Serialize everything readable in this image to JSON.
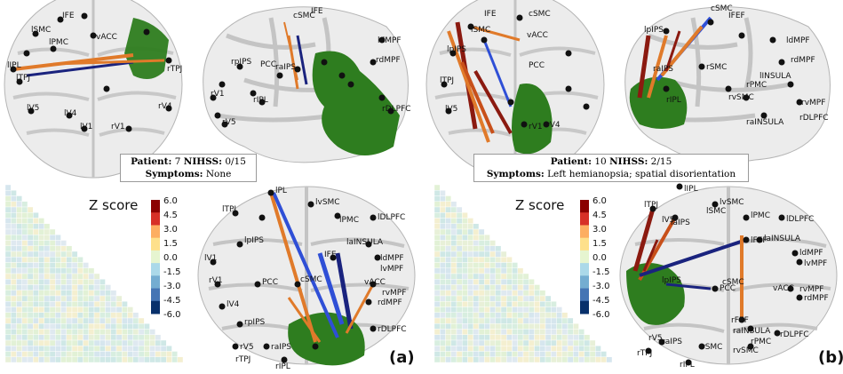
{
  "panel_a": {
    "caption": {
      "patient_label": "Patient:",
      "patient": "7",
      "nihss_label": "NIHSS:",
      "nihss": "0/15",
      "symptoms_label": "Symptoms:",
      "symptoms": "None"
    },
    "matrix_title": "Z score",
    "colorbar_ticks": [
      "6.0",
      "4.5",
      "3.0",
      "1.5",
      "0.0",
      "-1.5",
      "-3.0",
      "-4.5",
      "-6.0"
    ],
    "panel_label": "(a)",
    "brain_top_left_labels": [
      "IFE",
      "rFEF",
      "cSMC",
      "lSMC",
      "vACC",
      "lPMC",
      "lPMC",
      "laIPS",
      "rIPS",
      "lIPL",
      "lTPJ",
      "rTPJ",
      "rIPL",
      "lV5",
      "lV4",
      "lV1",
      "rV1",
      "rV4"
    ],
    "brain_top_right_labels": [
      "cSMC",
      "IFE",
      "rpIPS",
      "PCC",
      "raIPS",
      "rSMC",
      "lPMC",
      "lvIPS",
      "lV1",
      "rV1",
      "lV4",
      "rV5",
      "rIPL",
      "ldMPF",
      "rdMPF",
      "lINSULA",
      "lvMPF",
      "rvMPF",
      "rDLPFC",
      "lIPL"
    ],
    "brain_bottom_labels": [
      "lPL",
      "lTPJ",
      "lV5",
      "lvSMC",
      "lSMC",
      "lPMC",
      "lDLPFC",
      "lalPS",
      "lpIPS",
      "lV1",
      "rV1",
      "PCC",
      "cSMC",
      "IFE",
      "laINSULA",
      "ldMPF",
      "lvMPF",
      "vACC",
      "rvMPF",
      "rdMPF",
      "lV4",
      "rpIPS",
      "lFEF",
      "rV5",
      "raIPS",
      "rTPJ",
      "rIPL",
      "rSMC",
      "rDLPFC"
    ]
  },
  "panel_b": {
    "caption": {
      "patient_label": "Patient:",
      "patient": "10",
      "nihss_label": "NIHSS:",
      "nihss": "2/15",
      "symptoms_label": "Symptoms:",
      "symptoms": "Left hemianopsia; spatial disorientation"
    },
    "matrix_title": "Z score",
    "colorbar_ticks": [
      "6.0",
      "4.5",
      "3.0",
      "1.5",
      "0.0",
      "-1.5",
      "-3.0",
      "-4.5",
      "-6.0"
    ],
    "panel_label": "(b)",
    "brain_top_left_labels": [
      "IFE",
      "cSMC",
      "lSMC",
      "vACC",
      "lPMC",
      "lPMC",
      "laIPS",
      "lpIPS",
      "rIPS",
      "lTPJ",
      "rTPJ",
      "lV5",
      "lV4",
      "rV4",
      "PCC",
      "rV1"
    ],
    "brain_top_right_labels": [
      "IFEF",
      "cSMC",
      "lpIPS",
      "rSMC",
      "rIPL",
      "rvSMC",
      "raINSULA",
      "rPMC",
      "rDLPFC",
      "rvMPF",
      "ldMPF",
      "rdMPF",
      "raIPS",
      "lINSULA"
    ],
    "brain_bottom_labels": [
      "lIPL",
      "lTPJ",
      "lV5",
      "lvSMC",
      "lSMC",
      "lPMC",
      "lDLPFC",
      "laIPS",
      "lFEF",
      "laINSULA",
      "ldMPF",
      "lvMPF",
      "vACC",
      "rvMPF",
      "rdMPF",
      "lpIPS",
      "cSMC",
      "PCC",
      "rFEF",
      "raINSULA",
      "rDLPFC",
      "rPMC",
      "rvSMC",
      "rSMC",
      "raIPS",
      "rV5",
      "rTPJ",
      "rIPL"
    ]
  },
  "colors": {
    "lesion": "#2e7d1f",
    "pos_strong": "#8b1a10",
    "pos_mid": "#e07a2a",
    "neg_strong": "#1a237e",
    "neg_mid": "#2f4fd6",
    "brain_fill": "#ececec",
    "sulci": "#bdbdbd"
  }
}
